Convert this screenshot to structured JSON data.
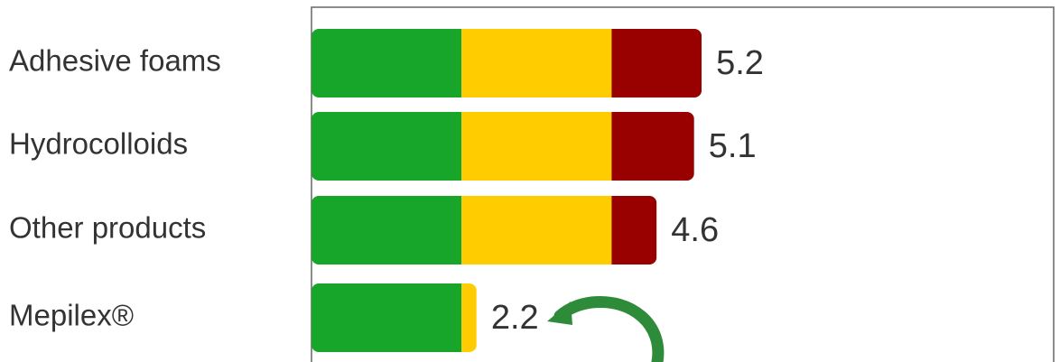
{
  "chart_data": {
    "type": "stacked-bar-horizontal",
    "categories": [
      "Adhesive foams",
      "Hydrocolloids",
      "Other products",
      "Mepilex®"
    ],
    "series": [
      {
        "color": "#17a62a",
        "values": [
          2.0,
          2.0,
          2.0,
          2.0
        ]
      },
      {
        "color": "#ffcc00",
        "values": [
          2.0,
          2.0,
          2.0,
          0.2
        ]
      },
      {
        "color": "#990000",
        "values": [
          1.2,
          1.1,
          0.6,
          0
        ]
      }
    ],
    "totals": [
      5.2,
      5.1,
      4.6,
      2.2
    ]
  }
}
